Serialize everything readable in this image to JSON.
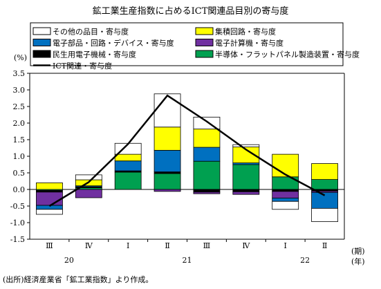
{
  "chart_data": {
    "type": "bar",
    "stacked": true,
    "title": "鉱工業生産指数に占めるICT関連品目別の寄与度",
    "ylabel": "(%)",
    "xlabel_unit": [
      "(期)",
      "(年)"
    ],
    "ylim": [
      -1.5,
      3.5
    ],
    "y_ticks": [
      3.5,
      3.0,
      2.5,
      2.0,
      1.5,
      1.0,
      0.5,
      0.0,
      -0.5,
      -1.0,
      -1.5
    ],
    "y_tick_labels": [
      "3.5",
      "3.0",
      "2.5",
      "2.0",
      "1.5",
      "1.0",
      "0.5",
      "0.0",
      "-0.5",
      "-1.0",
      "-1.5"
    ],
    "categories": [
      "Ⅲ",
      "Ⅳ",
      "Ⅰ",
      "Ⅱ",
      "Ⅲ",
      "Ⅳ",
      "Ⅰ",
      "Ⅱ"
    ],
    "year_labels": [
      {
        "label": "20",
        "first": 0,
        "last": 1
      },
      {
        "label": "21",
        "first": 2,
        "last": 5
      },
      {
        "label": "22",
        "first": 6,
        "last": 7
      }
    ],
    "grid": false,
    "legend_position": "top",
    "series": [
      {
        "name": "半導体・フラットパネル製造装置・寄与度",
        "color": "#00a050",
        "values": [
          -0.03,
          0.05,
          0.52,
          0.48,
          0.85,
          0.75,
          0.38,
          0.3
        ]
      },
      {
        "name": "民生用電子機械・寄与度",
        "color": "#000000",
        "values": [
          -0.05,
          0.03,
          0.04,
          0.05,
          -0.08,
          -0.07,
          -0.06,
          -0.05
        ]
      },
      {
        "name": "電子計算機・寄与度",
        "color": "#7030a0",
        "values": [
          -0.4,
          -0.25,
          0.0,
          -0.06,
          -0.05,
          -0.08,
          -0.2,
          -0.04
        ]
      },
      {
        "name": "電子部品・回路・デバイス・寄与度",
        "color": "#0070c0",
        "values": [
          -0.12,
          0.03,
          0.3,
          0.65,
          0.42,
          0.05,
          -0.1,
          -0.48
        ]
      },
      {
        "name": "集積回路・寄与度",
        "color": "#ffff00",
        "values": [
          0.2,
          0.18,
          0.2,
          0.7,
          0.55,
          0.48,
          0.68,
          0.48
        ]
      },
      {
        "name": "その他の品目・寄与度",
        "color": "#ffffff",
        "values": [
          -0.15,
          0.15,
          0.33,
          1.0,
          0.36,
          0.07,
          -0.24,
          -0.4
        ]
      }
    ],
    "line": {
      "name": "ICT関連・寄与度",
      "color": "#000000",
      "values": [
        -0.5,
        0.22,
        1.37,
        2.83,
        2.05,
        1.2,
        0.45,
        -0.18
      ]
    },
    "legend": [
      {
        "name": "その他の品目・寄与度",
        "color": "#ffffff",
        "kind": "box"
      },
      {
        "name": "集積回路・寄与度",
        "color": "#ffff00",
        "kind": "box"
      },
      {
        "name": "電子部品・回路・デバイス・寄与度",
        "color": "#0070c0",
        "kind": "box"
      },
      {
        "name": "電子計算機・寄与度",
        "color": "#7030a0",
        "kind": "box"
      },
      {
        "name": "民生用電子機械・寄与度",
        "color": "#000000",
        "kind": "box"
      },
      {
        "name": "半導体・フラットパネル製造装置・寄与度",
        "color": "#00a050",
        "kind": "box"
      },
      {
        "name": "ICT関連・寄与度",
        "color": "#000000",
        "kind": "line"
      }
    ]
  },
  "source_note": "(出所)経済産業省「鉱工業指数」より作成。"
}
